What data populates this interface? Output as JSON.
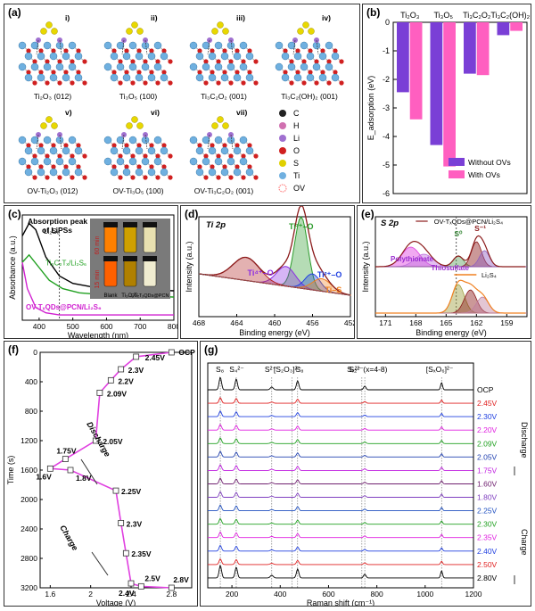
{
  "figure": {
    "panel_labels": [
      "(a)",
      "(b)",
      "(c)",
      "(d)",
      "(e)",
      "(f)",
      "(g)"
    ]
  },
  "panel_a": {
    "structures": [
      {
        "roman": "i)",
        "label": "Ti₂O₃ (012)"
      },
      {
        "roman": "ii)",
        "label": "Ti₃O₅ (100)"
      },
      {
        "roman": "iii)",
        "label": "Ti₃C₂O₂ (001)"
      },
      {
        "roman": "iv)",
        "label": "Ti₃C₂(OH)₂ (001)"
      },
      {
        "roman": "v)",
        "label": "OV-Ti₂O₃ (012)"
      },
      {
        "roman": "vi)",
        "label": "OV-Ti₃O₅ (100)"
      },
      {
        "roman": "vii)",
        "label": "OV-Ti₃C₂O₂ (001)"
      }
    ],
    "legend": [
      {
        "symbol": "C",
        "color": "#222222"
      },
      {
        "symbol": "H",
        "color": "#d070b0"
      },
      {
        "symbol": "Li",
        "color": "#a070d0"
      },
      {
        "symbol": "O",
        "color": "#d02020"
      },
      {
        "symbol": "S",
        "color": "#e0d000"
      },
      {
        "symbol": "Ti",
        "color": "#70b0e0"
      },
      {
        "symbol": "OV",
        "color": "#ff8080"
      }
    ]
  },
  "chart_data": [
    {
      "panel": "(b)",
      "type": "bar",
      "categories": [
        "Ti₂O₃",
        "Ti₃O₅",
        "Ti₃C₂O₂",
        "Ti₃C₂(OH)₂"
      ],
      "ylabel": "E_adsorption (eV)",
      "ylim": [
        -6,
        0
      ],
      "yticks": [
        0,
        -1,
        -2,
        -3,
        -4,
        -5,
        -6
      ],
      "legend_position": "bottom-right",
      "series": [
        {
          "name": "Without OVs",
          "values": [
            -2.45,
            -4.3,
            -1.8,
            -0.45
          ],
          "color": "#7a3fd6"
        },
        {
          "name": "With OVs",
          "values": [
            -3.4,
            -5.05,
            -1.85,
            -0.3
          ],
          "color": "#ff5fc0"
        }
      ]
    },
    {
      "panel": "(c)",
      "type": "line",
      "xlabel": "Wavelength (nm)",
      "ylabel": "Absorbance (a.u.)",
      "xlim": [
        350,
        800
      ],
      "xticks": [
        400,
        500,
        600,
        700,
        800
      ],
      "series": [
        {
          "name": "Li₂S₆",
          "color": "#000000",
          "x": [
            350,
            370,
            390,
            420,
            460,
            500,
            550,
            600,
            700,
            800
          ],
          "y": [
            0.8,
            0.92,
            0.86,
            0.6,
            0.42,
            0.35,
            0.32,
            0.3,
            0.29,
            0.28
          ]
        },
        {
          "name": "Ti₃C₂Tₓ/Li₂S₆",
          "color": "#20a020",
          "x": [
            350,
            370,
            400,
            430,
            470,
            520,
            600,
            700,
            800
          ],
          "y": [
            0.55,
            0.62,
            0.5,
            0.38,
            0.3,
            0.26,
            0.24,
            0.23,
            0.22
          ]
        },
        {
          "name": "OV-TₓQDs@PCN/Li₂S₆",
          "color": "#d020d0",
          "x": [
            350,
            365,
            390,
            420,
            460,
            520,
            600,
            700,
            800
          ],
          "y": [
            0.55,
            0.3,
            0.12,
            0.07,
            0.05,
            0.05,
            0.05,
            0.05,
            0.05
          ]
        }
      ],
      "annotations": [
        "Absorption peak",
        "of LiPSs",
        "60 min",
        "15 min",
        "Blank",
        "Ti₃C₂Tₓ",
        "OV-TₓQDs@PCN"
      ]
    },
    {
      "panel": "(d)",
      "type": "line",
      "title": "Ti 2p",
      "xlabel": "Binding energy (eV)",
      "ylabel": "Intensity (a.u.)",
      "xlim": [
        468,
        452
      ],
      "xticks": [
        468,
        464,
        460,
        456,
        452
      ],
      "peaks": [
        {
          "name": "Ti³⁺–O",
          "center": 457.2,
          "color": "#2a9a2a"
        },
        {
          "name": "Ti⁴⁺–O",
          "center": 458.8,
          "color": "#8a2be2"
        },
        {
          "name": "Ti²⁺–O",
          "center": 456.0,
          "color": "#2040e0"
        },
        {
          "name": "Ti–S",
          "center": 455.0,
          "color": "#f08020"
        },
        {
          "name": "envelope-2p1/2",
          "center": 463.0,
          "color": "#b02020"
        }
      ]
    },
    {
      "panel": "(e)",
      "type": "line",
      "title": "S 2p",
      "xlabel": "Binding energy (eV)",
      "ylabel": "Intensity (a.u.)",
      "xlim": [
        172,
        157
      ],
      "xticks": [
        171,
        168,
        165,
        162,
        159
      ],
      "series": [
        {
          "name": "OV-TₓQDs@PCN/Li₂S₄",
          "color": "#8b1a1a"
        },
        {
          "name": "Li₂S₄",
          "color": "#f08020"
        }
      ],
      "annotations": [
        "Polythionate",
        "Thiosulfate",
        "S⁰",
        "S⁻¹"
      ]
    },
    {
      "panel": "(f)",
      "type": "line",
      "xlabel": "Voltage (V)",
      "ylabel": "Time (s)",
      "xlim": [
        1.5,
        3.0
      ],
      "ylim": [
        0,
        3200
      ],
      "xticks": [
        1.6,
        2.0,
        2.4,
        2.8
      ],
      "yticks": [
        0,
        400,
        800,
        1200,
        1600,
        2000,
        2400,
        2800,
        3200
      ],
      "series": [
        {
          "name": "discharge-charge",
          "color": "#e040e0",
          "x": [
            2.8,
            2.45,
            2.3,
            2.2,
            2.09,
            2.05,
            1.75,
            1.6,
            1.8,
            2.25,
            2.3,
            2.35,
            2.4,
            2.5,
            2.8
          ],
          "y": [
            0,
            60,
            230,
            380,
            550,
            1200,
            1450,
            1580,
            1600,
            1880,
            2320,
            2730,
            3140,
            3180,
            3200
          ]
        }
      ],
      "point_labels": [
        "OCP",
        "2.45V",
        "2.3V",
        "2.2V",
        "2.09V",
        "2.05V",
        "1.75V",
        "1.6V",
        "1.8V",
        "2.25V",
        "2.3V",
        "2.35V",
        "2.4V",
        "2.5V",
        "2.8V"
      ],
      "annotations": [
        "Discharge",
        "Charge"
      ]
    },
    {
      "panel": "(g)",
      "type": "line",
      "xlabel": "Raman shift (cm⁻¹)",
      "xlim": [
        100,
        1200
      ],
      "xticks": [
        200,
        400,
        600,
        800,
        1000,
        1200
      ],
      "peak_labels": [
        "S₈",
        "S₄²⁻",
        "S²⁻",
        "[S₂O₃]²⁻",
        "S₈",
        "S₂²⁻",
        "Sₓ²⁻ (x=4-8)",
        "[SₓO₆]²⁻"
      ],
      "series": [
        {
          "name": "OCP",
          "color": "#000000"
        },
        {
          "name": "2.45V",
          "color": "#e02020"
        },
        {
          "name": "2.30V",
          "color": "#2040e0"
        },
        {
          "name": "2.20V",
          "color": "#e020e0"
        },
        {
          "name": "2.09V",
          "color": "#20a020"
        },
        {
          "name": "2.05V",
          "color": "#2040b0"
        },
        {
          "name": "1.75V",
          "color": "#c020e0"
        },
        {
          "name": "1.60V",
          "color": "#702070"
        },
        {
          "name": "1.80V",
          "color": "#8040c0"
        },
        {
          "name": "2.25V",
          "color": "#2050c0"
        },
        {
          "name": "2.30V",
          "color": "#20a020"
        },
        {
          "name": "2.35V",
          "color": "#e020e0"
        },
        {
          "name": "2.40V",
          "color": "#2040e0"
        },
        {
          "name": "2.50V",
          "color": "#e02020"
        },
        {
          "name": "2.80V",
          "color": "#000000"
        }
      ],
      "annotations": [
        "Discharge",
        "Charge"
      ]
    }
  ]
}
